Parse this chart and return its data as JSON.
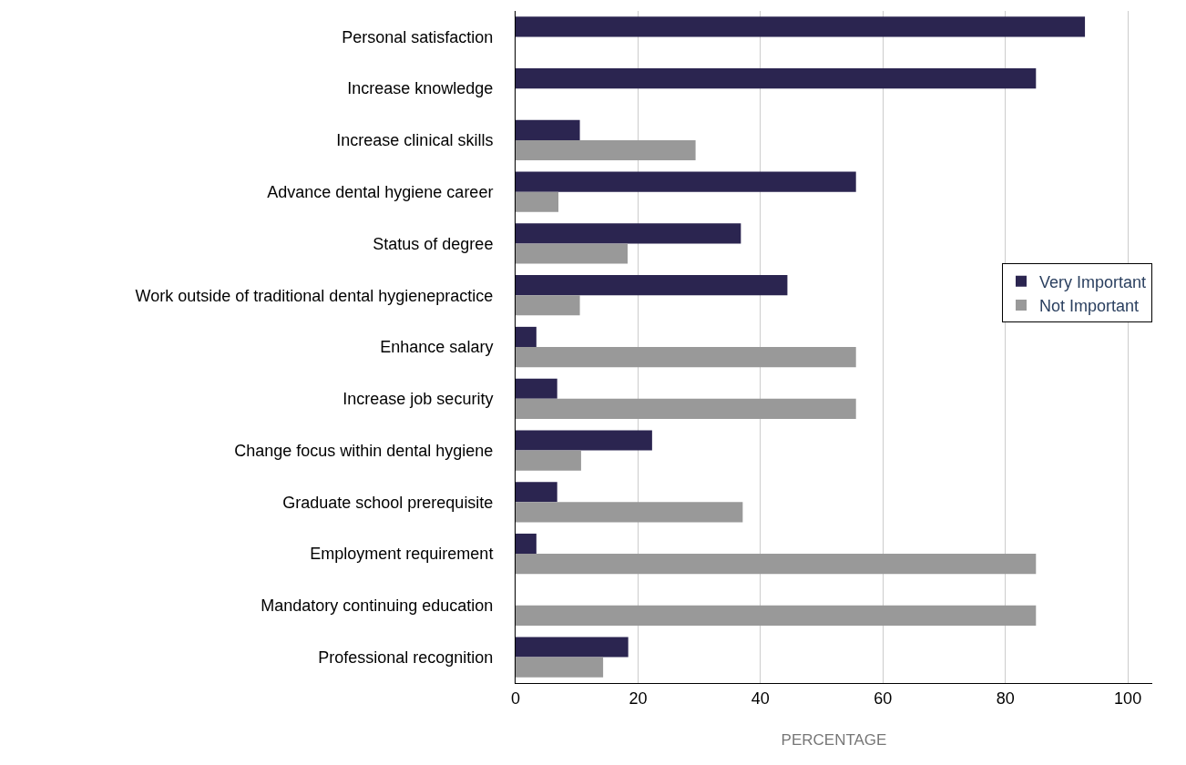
{
  "chart_data": {
    "type": "bar",
    "orientation": "horizontal",
    "xlabel": "PERCENTAGE",
    "categories": [
      "Personal satisfaction",
      "Increase knowledge",
      "Increase clinical skills",
      "Advance dental hygiene career",
      "Status of degree",
      "Work outside of traditional dental hygienepractice",
      "Enhance salary",
      "Increase job security",
      "Change focus within dental hygiene",
      "Graduate school prerequisite",
      "Employment requirement",
      "Mandatory continuing education",
      "Professional recognition"
    ],
    "series": [
      {
        "name": "Very Important",
        "color": "#2b2550",
        "values": [
          93,
          85,
          10.5,
          55.6,
          36.8,
          44.4,
          3.4,
          6.8,
          22.3,
          6.8,
          3.4,
          null,
          18.4
        ]
      },
      {
        "name": "Not Important",
        "color": "#999999",
        "values": [
          null,
          null,
          29.4,
          7,
          18.3,
          10.5,
          55.6,
          55.6,
          10.7,
          37.1,
          85,
          85,
          14.3
        ]
      }
    ],
    "xlim": [
      0,
      104
    ],
    "xticks": [
      0,
      20,
      40,
      60,
      80,
      100
    ],
    "grid": "x",
    "legend": "right"
  }
}
